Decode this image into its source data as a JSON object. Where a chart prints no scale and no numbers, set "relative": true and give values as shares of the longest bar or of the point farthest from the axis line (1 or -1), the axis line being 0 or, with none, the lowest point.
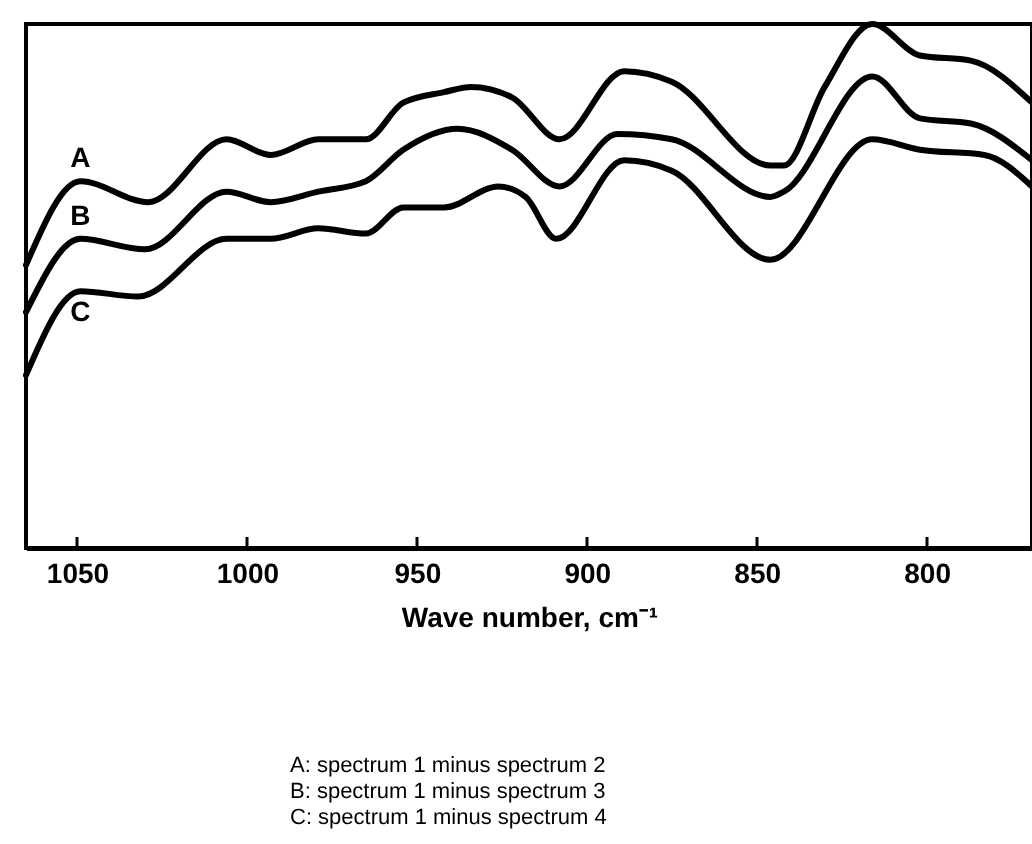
{
  "chart_data": {
    "type": "line",
    "relative": true,
    "xlabel": "Wave number, cm⁻¹",
    "xlim": [
      1065,
      769
    ],
    "xticks": [
      1050,
      1000,
      950,
      900,
      850,
      800
    ],
    "grid": false,
    "legend": false,
    "marker": "none",
    "line_style": "solid",
    "series": [
      {
        "name": "A",
        "color": "#000000",
        "x": [
          1065,
          1049,
          1029,
          1006,
          993,
          979,
          965,
          954,
          942,
          934,
          922,
          908,
          889,
          875,
          846,
          842,
          830,
          816,
          802,
          787,
          769
        ],
        "values": [
          0.54,
          0.7,
          0.66,
          0.78,
          0.75,
          0.78,
          0.78,
          0.85,
          0.87,
          0.88,
          0.86,
          0.78,
          0.91,
          0.89,
          0.73,
          0.73,
          0.88,
          1.0,
          0.94,
          0.93,
          0.85
        ]
      },
      {
        "name": "B",
        "color": "#000000",
        "x": [
          1065,
          1049,
          1030,
          1006,
          993,
          979,
          965,
          954,
          938,
          922,
          908,
          891,
          875,
          846,
          842,
          816,
          802,
          787,
          769
        ],
        "values": [
          0.45,
          0.59,
          0.57,
          0.68,
          0.66,
          0.68,
          0.7,
          0.76,
          0.8,
          0.76,
          0.69,
          0.79,
          0.78,
          0.67,
          0.68,
          0.9,
          0.82,
          0.81,
          0.74
        ]
      },
      {
        "name": "C",
        "color": "#000000",
        "x": [
          1065,
          1049,
          1032,
          1006,
          993,
          979,
          965,
          954,
          942,
          926,
          918,
          909,
          889,
          875,
          846,
          816,
          802,
          783,
          769
        ],
        "values": [
          0.33,
          0.49,
          0.48,
          0.59,
          0.59,
          0.61,
          0.6,
          0.65,
          0.65,
          0.69,
          0.67,
          0.59,
          0.74,
          0.72,
          0.55,
          0.78,
          0.76,
          0.75,
          0.69
        ]
      }
    ],
    "annotations": [
      "A: spectrum 1 minus spectrum 2",
      "B: spectrum 1 minus spectrum 3",
      "C: spectrum 1 minus spectrum 4"
    ]
  }
}
